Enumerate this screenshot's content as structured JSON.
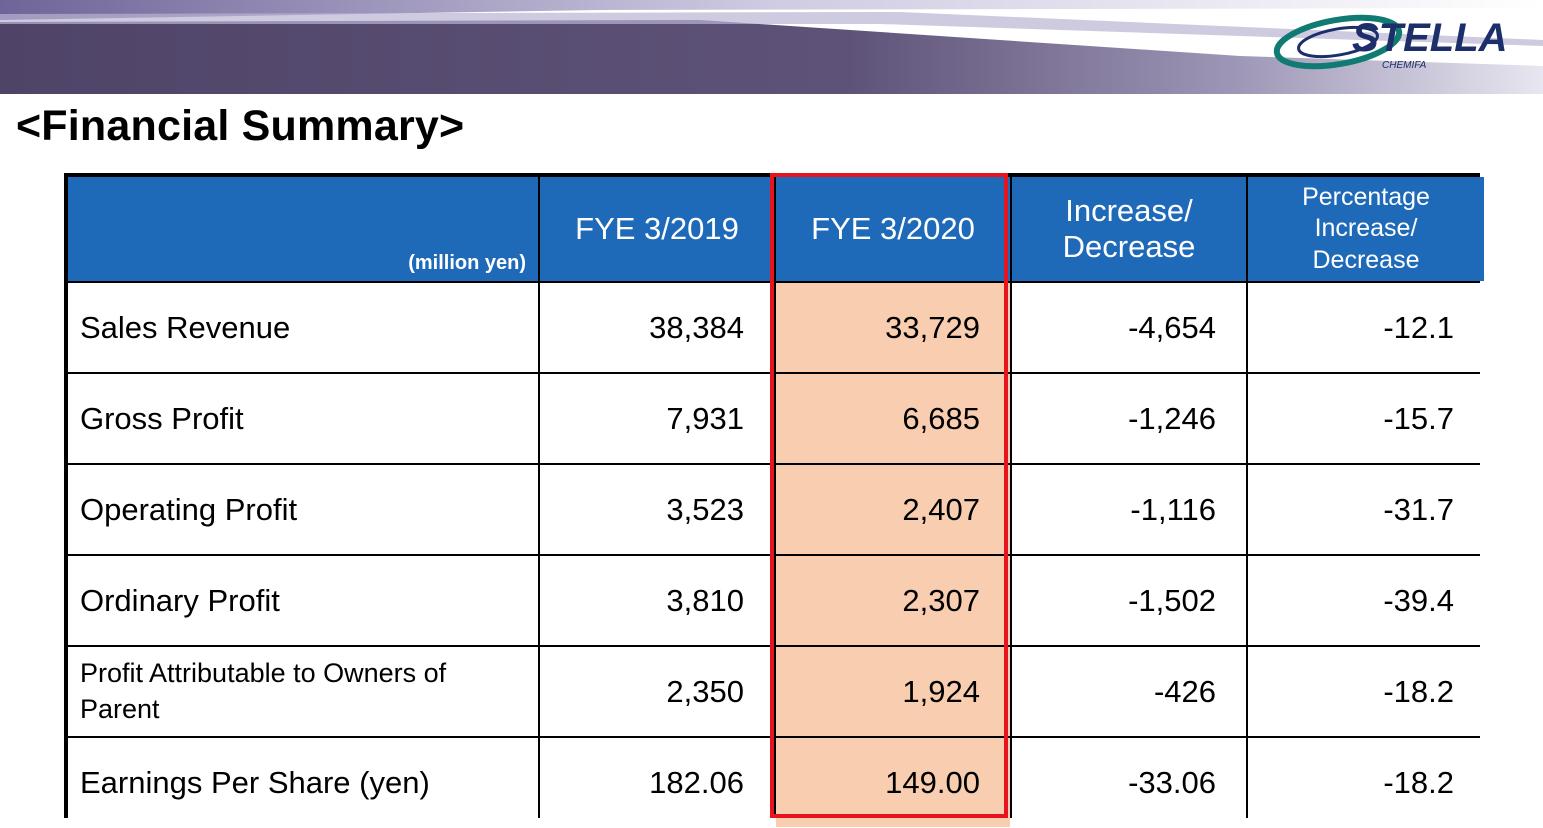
{
  "logo": {
    "brand": "STELLA",
    "sub": "CHEMIFA"
  },
  "title": "<Financial Summary>",
  "table": {
    "unit": "(million yen)",
    "columns": [
      "FYE 3/2019",
      "FYE 3/2020",
      "Increase/ Decrease",
      "Percentage Increase/ Decrease"
    ],
    "highlighted_column": "FYE 3/2020",
    "rows": [
      {
        "label": "Sales Revenue",
        "fye2019": "38,384",
        "fye2020": "33,729",
        "change": "-4,654",
        "pct": "-12.1"
      },
      {
        "label": "Gross Profit",
        "fye2019": "7,931",
        "fye2020": "6,685",
        "change": "-1,246",
        "pct": "-15.7"
      },
      {
        "label": "Operating Profit",
        "fye2019": "3,523",
        "fye2020": "2,407",
        "change": "-1,116",
        "pct": "-31.7"
      },
      {
        "label": "Ordinary Profit",
        "fye2019": "3,810",
        "fye2020": "2,307",
        "change": "-1,502",
        "pct": "-39.4"
      },
      {
        "label": "Profit Attributable to Owners of Parent",
        "fye2019": "2,350",
        "fye2020": "1,924",
        "change": "-426",
        "pct": "-18.2"
      },
      {
        "label": "Earnings Per Share (yen)",
        "fye2019": "182.06",
        "fye2020": "149.00",
        "change": "-33.06",
        "pct": "-18.2"
      }
    ]
  },
  "colors": {
    "header_bg": "#1f6ab8",
    "highlight_fill": "#f8cdb0",
    "highlight_border": "#e8141d",
    "banner_purple": "#5a4a72",
    "logo_teal": "#0f7b72",
    "logo_navy": "#1c2f6b"
  }
}
